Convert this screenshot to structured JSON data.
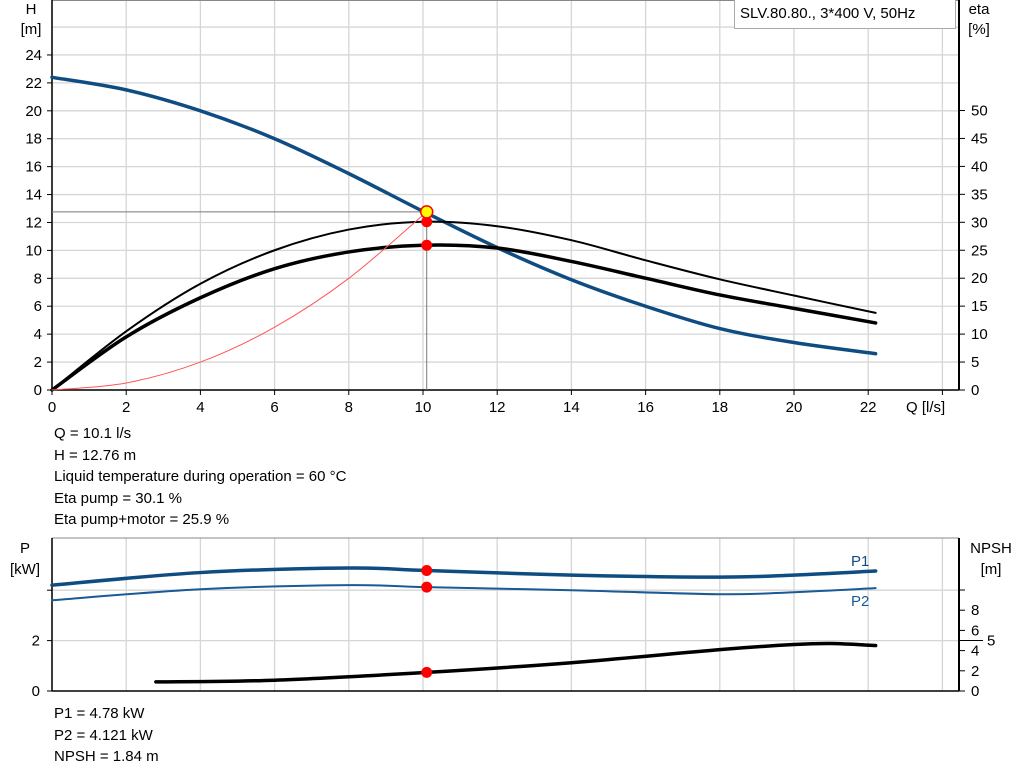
{
  "chart_data": [
    {
      "type": "line",
      "legend_box": "SLV.80.80., 3*400 V, 50Hz",
      "xlabel": "Q [l/s]",
      "ylabel_left": [
        "H",
        "[m]"
      ],
      "ylabel_right": [
        "eta",
        "[%]"
      ],
      "xlim": [
        0,
        24
      ],
      "ylim_left": [
        0,
        26
      ],
      "ylim_right": [
        0,
        50
      ],
      "x_ticks": [
        0,
        2,
        4,
        6,
        8,
        10,
        12,
        14,
        16,
        18,
        20,
        22
      ],
      "y_left_ticks": [
        0,
        2,
        4,
        6,
        8,
        10,
        12,
        14,
        16,
        18,
        20,
        22,
        24
      ],
      "y_right_ticks": [
        0,
        5,
        10,
        15,
        20,
        25,
        30,
        35,
        40,
        45,
        50
      ],
      "grid": true,
      "series": [
        {
          "axis": "left",
          "color": "#0f4c81",
          "x": [
            0,
            2,
            4,
            6,
            8,
            10,
            12,
            14,
            16,
            18,
            20,
            22.2
          ],
          "y": [
            22.4,
            21.5,
            20,
            18,
            15.5,
            12.8,
            10.2,
            7.9,
            6.0,
            4.4,
            3.4,
            2.6
          ]
        },
        {
          "axis": "right",
          "color": "#000000",
          "x": [
            0,
            2,
            4,
            6,
            8,
            10,
            12,
            14,
            16,
            18,
            20,
            22.2
          ],
          "y": [
            0,
            10.5,
            19,
            25,
            28.7,
            30.1,
            29.3,
            26.8,
            23.2,
            19.8,
            16.9,
            13.8
          ]
        },
        {
          "axis": "right",
          "color": "#000000",
          "x": [
            0,
            2,
            4,
            6,
            8,
            10,
            12,
            14,
            16,
            18,
            20,
            22.2
          ],
          "y": [
            0,
            9.5,
            16.5,
            21.7,
            24.7,
            25.9,
            25.4,
            23,
            20,
            17,
            14.6,
            12
          ]
        },
        {
          "axis": "left",
          "color": "#ff5555",
          "x": [
            0,
            2,
            4,
            6,
            8,
            10.1
          ],
          "y": [
            0,
            0.5,
            2.0,
            4.5,
            8.0,
            12.76
          ]
        }
      ],
      "operating_point": {
        "Q": 10.1,
        "H": 12.76,
        "eta_pump": 30.1,
        "eta_pump_motor": 25.9
      },
      "readout": [
        "Q = 10.1 l/s",
        "H = 12.76 m",
        "Liquid temperature during operation = 60 °C",
        "Eta pump = 30.1 %",
        "Eta pump+motor = 25.9 %"
      ]
    },
    {
      "type": "line",
      "ylabel_left": [
        "P",
        "[kW]"
      ],
      "ylabel_right": [
        "NPSH",
        "[m]"
      ],
      "xlim": [
        0,
        24
      ],
      "ylim_left": [
        0,
        6
      ],
      "y_left_ticks": [
        0,
        2
      ],
      "y_right_ticks": [
        0,
        2,
        4,
        5,
        6,
        8
      ],
      "grid": true,
      "series": [
        {
          "name": "P1",
          "axis": "left",
          "color": "#0f4c81",
          "x": [
            0,
            4,
            8,
            10.1,
            14,
            18,
            20,
            22.2
          ],
          "y": [
            4.2,
            4.7,
            4.88,
            4.78,
            4.6,
            4.52,
            4.6,
            4.76
          ]
        },
        {
          "name": "P2",
          "axis": "left",
          "color": "#1a5a96",
          "x": [
            0,
            4,
            8,
            10.1,
            14,
            18,
            20,
            22.2
          ],
          "y": [
            3.6,
            4.04,
            4.2,
            4.121,
            4.0,
            3.84,
            3.92,
            4.08
          ]
        },
        {
          "axis": "right",
          "color": "#000000",
          "x": [
            2.8,
            6,
            10.1,
            14,
            18,
            20,
            21,
            22.2
          ],
          "y": [
            0.9,
            1.07,
            1.84,
            2.8,
            4.1,
            4.6,
            4.7,
            4.5
          ]
        }
      ],
      "operating_point": {
        "Q": 10.1,
        "P1": 4.78,
        "P2": 4.121,
        "NPSH": 1.84
      },
      "readout": [
        "P1 = 4.78 kW",
        "P2 = 4.121 kW",
        "NPSH = 1.84 m"
      ]
    }
  ]
}
